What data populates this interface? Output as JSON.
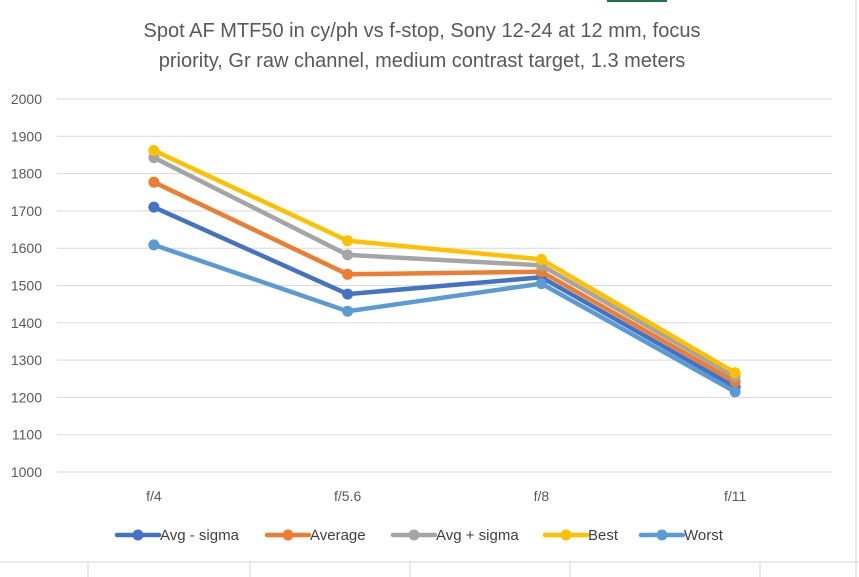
{
  "chart_data": {
    "type": "line",
    "title_lines": [
      "Spot AF MTF50 in cy/ph vs f-stop, Sony 12-24 at 12 mm, focus",
      "priority, Gr raw channel, medium contrast target, 1.3 meters"
    ],
    "categories": [
      "f/4",
      "f/5.6",
      "f/8",
      "f/11"
    ],
    "ylim": [
      1000,
      2000
    ],
    "yticks": [
      1000,
      1100,
      1200,
      1300,
      1400,
      1500,
      1600,
      1700,
      1800,
      1900,
      2000
    ],
    "grid": true,
    "legend_position": "bottom",
    "series": [
      {
        "name": "Avg - sigma",
        "color": "#4472c4",
        "values": [
          1710,
          1477,
          1522,
          1228
        ]
      },
      {
        "name": "Average",
        "color": "#ed7d31",
        "values": [
          1777,
          1530,
          1537,
          1242
        ]
      },
      {
        "name": "Avg + sigma",
        "color": "#a5a5a5",
        "values": [
          1843,
          1582,
          1554,
          1256
        ]
      },
      {
        "name": "Best",
        "color": "#ffc000",
        "values": [
          1862,
          1620,
          1570,
          1266
        ]
      },
      {
        "name": "Worst",
        "color": "#5b9bd5",
        "values": [
          1609,
          1431,
          1505,
          1215
        ]
      }
    ]
  }
}
